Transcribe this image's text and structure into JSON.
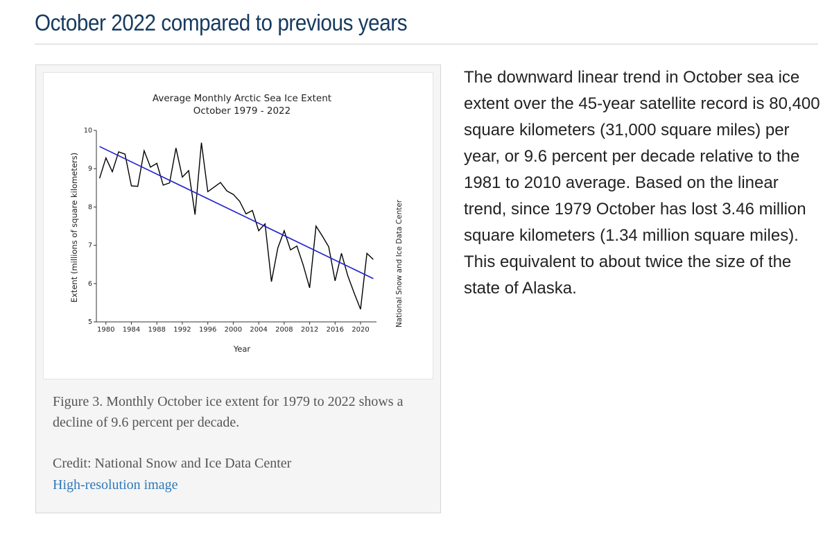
{
  "page": {
    "title": "October 2022 compared to previous years"
  },
  "figure": {
    "caption": "Figure 3. Monthly October ice extent for 1979 to 2022 shows a decline of 9.6 percent per decade.",
    "credit": "Credit: National Snow and Ice Data Center",
    "link_label": "High-resolution image"
  },
  "side_text": "The downward linear trend in October sea ice extent over the 45-year satellite record is 80,400 square kilometers (31,000 square miles) per year, or 9.6 percent per decade relative to the 1981 to 2010 average. Based on the linear trend, since 1979 October has lost 3.46 million square kilometers (1.34 million square miles). This equivalent to about twice the size of the state of Alaska.",
  "chart_data": {
    "type": "line",
    "title": "Average Monthly Arctic Sea Ice Extent",
    "subtitle": "October 1979 - 2022",
    "xlabel": "Year",
    "ylabel": "Extent (millions of square kilometers)",
    "watermark": "National Snow and Ice Data Center",
    "xlim": [
      1978.5,
      2022.5
    ],
    "ylim": [
      5,
      10
    ],
    "x_ticks": [
      1980,
      1984,
      1988,
      1992,
      1996,
      2000,
      2004,
      2008,
      2012,
      2016,
      2020
    ],
    "y_ticks": [
      5,
      6,
      7,
      8,
      9,
      10
    ],
    "series": [
      {
        "color": "#000000",
        "x": [
          1979,
          1980,
          1981,
          1982,
          1983,
          1984,
          1985,
          1986,
          1987,
          1988,
          1989,
          1990,
          1991,
          1992,
          1993,
          1994,
          1995,
          1996,
          1997,
          1998,
          1999,
          2000,
          2001,
          2002,
          2003,
          2004,
          2005,
          2006,
          2007,
          2008,
          2009,
          2010,
          2011,
          2012,
          2013,
          2014,
          2015,
          2016,
          2017,
          2018,
          2019,
          2020,
          2021,
          2022
        ],
        "values": [
          8.75,
          9.28,
          8.92,
          9.44,
          9.38,
          8.55,
          8.54,
          9.47,
          9.04,
          9.14,
          8.57,
          8.63,
          9.54,
          8.78,
          8.95,
          7.8,
          9.68,
          8.4,
          8.52,
          8.64,
          8.42,
          8.33,
          8.15,
          7.82,
          7.91,
          7.38,
          7.56,
          6.05,
          6.93,
          7.38,
          6.88,
          6.98,
          6.48,
          5.89,
          7.5,
          7.24,
          6.96,
          6.07,
          6.79,
          6.2,
          5.75,
          5.33,
          6.79,
          6.63
        ]
      },
      {
        "color": "#1f1fd0",
        "x": [
          1979,
          2022
        ],
        "values": [
          9.58,
          6.13
        ]
      }
    ]
  }
}
